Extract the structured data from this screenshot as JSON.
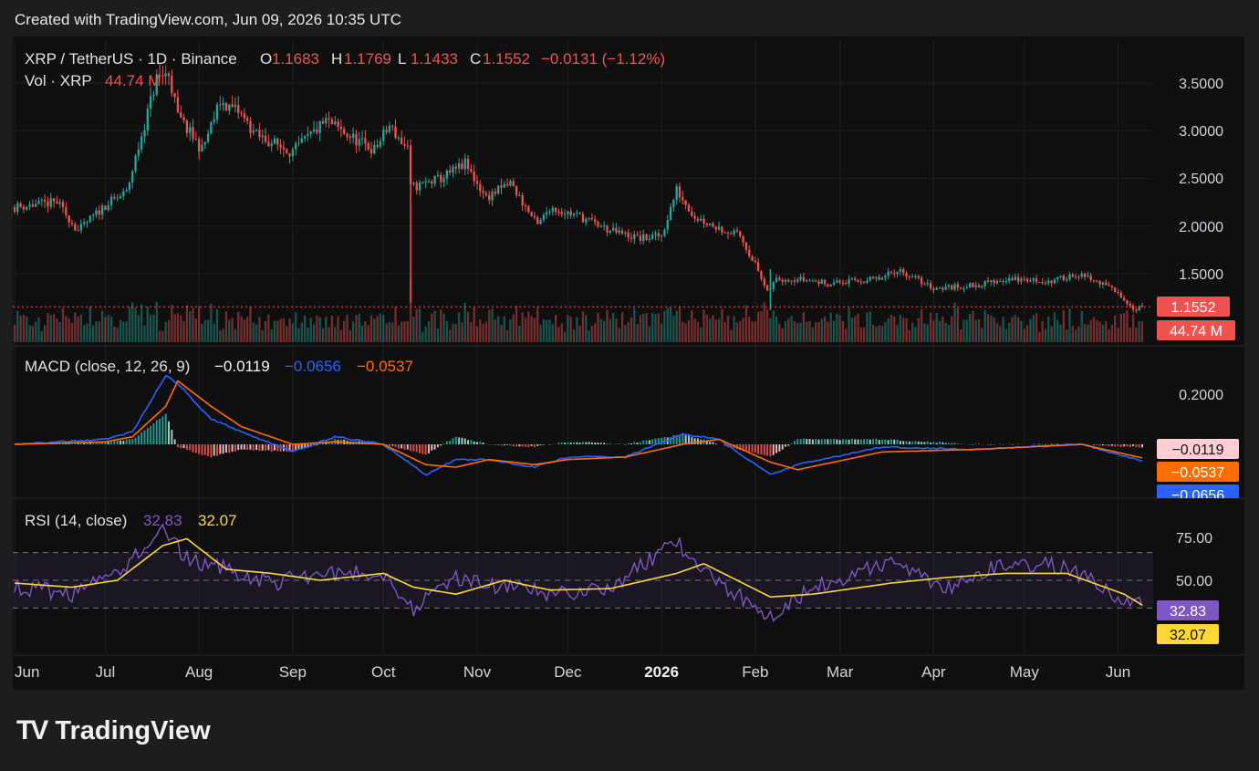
{
  "header": "Created with TradingView.com, Jun 09, 2026 10:35 UTC",
  "brand": "TradingView",
  "legend": {
    "symbol": "XRP / TetherUS · 1D · Binance",
    "o_label": "O",
    "o": "1.1683",
    "h_label": "H",
    "h": "1.1769",
    "l_label": "L",
    "l": "1.1433",
    "c_label": "C",
    "c": "1.1552",
    "change": "−0.0131 (−1.12%)",
    "vol_label": "Vol · XRP",
    "vol": "44.74 M"
  },
  "macd_legend": {
    "title": "MACD (close, 12, 26, 9)",
    "hist": "−0.0119",
    "macd": "−0.0656",
    "signal": "−0.0537"
  },
  "rsi_legend": {
    "title": "RSI (14, close)",
    "rsi": "32.83",
    "ma": "32.07"
  },
  "price_axis": [
    "3.5000",
    "3.0000",
    "2.5000",
    "2.0000",
    "1.5000"
  ],
  "macd_axis": [
    "0.2000"
  ],
  "rsi_axis": [
    "75.00",
    "50.00"
  ],
  "badges": {
    "price": "1.1552",
    "volume": "44.74 M",
    "macd_hist": "−0.0119",
    "macd_signal": "−0.0537",
    "macd_line": "−0.0656",
    "rsi": "32.83",
    "rsi_ma": "32.07"
  },
  "time_axis": [
    "Jun",
    "Jul",
    "Aug",
    "Sep",
    "Oct",
    "Nov",
    "Dec",
    "2026",
    "Feb",
    "Mar",
    "Apr",
    "May",
    "Jun"
  ],
  "colors": {
    "up": "#26a69a",
    "down": "#ef5350",
    "macd": "#2962ff",
    "signal": "#ff6d00",
    "rsi": "#7e57c2",
    "rsi_ma": "#fdd835",
    "text": "#d1d4dc",
    "bg": "#0f0f10"
  },
  "chart_data": [
    {
      "type": "candlestick",
      "title": "XRP / TetherUS · 1D · Binance",
      "ylim": [
        1.0,
        3.8
      ],
      "anchors": [
        {
          "date": "2025-06-01",
          "price": 2.2
        },
        {
          "date": "2025-06-15",
          "price": 2.25
        },
        {
          "date": "2025-06-22",
          "price": 1.95
        },
        {
          "date": "2025-07-01",
          "price": 2.22
        },
        {
          "date": "2025-07-08",
          "price": 2.35
        },
        {
          "date": "2025-07-13",
          "price": 2.95
        },
        {
          "date": "2025-07-18",
          "price": 3.55
        },
        {
          "date": "2025-07-22",
          "price": 3.6
        },
        {
          "date": "2025-07-25",
          "price": 3.15
        },
        {
          "date": "2025-08-02",
          "price": 2.8
        },
        {
          "date": "2025-08-08",
          "price": 3.3
        },
        {
          "date": "2025-08-14",
          "price": 3.2
        },
        {
          "date": "2025-08-20",
          "price": 2.95
        },
        {
          "date": "2025-09-01",
          "price": 2.78
        },
        {
          "date": "2025-09-12",
          "price": 3.1
        },
        {
          "date": "2025-09-22",
          "price": 2.9
        },
        {
          "date": "2025-09-28",
          "price": 2.8
        },
        {
          "date": "2025-10-03",
          "price": 3.05
        },
        {
          "date": "2025-10-09",
          "price": 2.8
        },
        {
          "date": "2025-10-10",
          "price": 2.4
        },
        {
          "date": "2025-10-20",
          "price": 2.5
        },
        {
          "date": "2025-10-28",
          "price": 2.65
        },
        {
          "date": "2025-11-04",
          "price": 2.3
        },
        {
          "date": "2025-11-12",
          "price": 2.45
        },
        {
          "date": "2025-11-21",
          "price": 2.0
        },
        {
          "date": "2025-11-25",
          "price": 2.2
        },
        {
          "date": "2025-12-05",
          "price": 2.1
        },
        {
          "date": "2025-12-15",
          "price": 1.95
        },
        {
          "date": "2025-12-25",
          "price": 1.87
        },
        {
          "date": "2026-01-01",
          "price": 1.9
        },
        {
          "date": "2026-01-06",
          "price": 2.38
        },
        {
          "date": "2026-01-12",
          "price": 2.1
        },
        {
          "date": "2026-01-20",
          "price": 1.98
        },
        {
          "date": "2026-01-27",
          "price": 1.9
        },
        {
          "date": "2026-02-01",
          "price": 1.6
        },
        {
          "date": "2026-02-05",
          "price": 1.3
        },
        {
          "date": "2026-02-08",
          "price": 1.45
        },
        {
          "date": "2026-02-15",
          "price": 1.45
        },
        {
          "date": "2026-02-25",
          "price": 1.4
        },
        {
          "date": "2026-03-15",
          "price": 1.45
        },
        {
          "date": "2026-03-20",
          "price": 1.55
        },
        {
          "date": "2026-04-01",
          "price": 1.35
        },
        {
          "date": "2026-04-15",
          "price": 1.38
        },
        {
          "date": "2026-04-25",
          "price": 1.45
        },
        {
          "date": "2026-05-10",
          "price": 1.42
        },
        {
          "date": "2026-05-18",
          "price": 1.5
        },
        {
          "date": "2026-05-28",
          "price": 1.38
        },
        {
          "date": "2026-06-03",
          "price": 1.25
        },
        {
          "date": "2026-06-06",
          "price": 1.13
        },
        {
          "date": "2026-06-09",
          "price": 1.1552
        }
      ],
      "last": {
        "open": 1.1683,
        "high": 1.1769,
        "low": 1.1433,
        "close": 1.1552
      },
      "volume_last": "44.74 M"
    },
    {
      "type": "line",
      "title": "MACD (close, 12, 26, 9)",
      "ylim": [
        -0.13,
        0.31
      ],
      "anchors": [
        {
          "date": "2025-06-01",
          "macd": 0.0,
          "signal": 0.0
        },
        {
          "date": "2025-07-01",
          "macd": 0.02,
          "signal": 0.01
        },
        {
          "date": "2025-07-10",
          "macd": 0.05,
          "signal": 0.03
        },
        {
          "date": "2025-07-21",
          "macd": 0.27,
          "signal": 0.15
        },
        {
          "date": "2025-07-25",
          "macd": 0.24,
          "signal": 0.25
        },
        {
          "date": "2025-08-05",
          "macd": 0.1,
          "signal": 0.15
        },
        {
          "date": "2025-08-15",
          "macd": 0.05,
          "signal": 0.07
        },
        {
          "date": "2025-09-01",
          "macd": -0.03,
          "signal": 0.0
        },
        {
          "date": "2025-09-15",
          "macd": 0.03,
          "signal": 0.01
        },
        {
          "date": "2025-10-01",
          "macd": 0.0,
          "signal": 0.0
        },
        {
          "date": "2025-10-15",
          "macd": -0.12,
          "signal": -0.08
        },
        {
          "date": "2025-10-25",
          "macd": -0.06,
          "signal": -0.09
        },
        {
          "date": "2025-11-05",
          "macd": -0.06,
          "signal": -0.06
        },
        {
          "date": "2025-11-20",
          "macd": -0.09,
          "signal": -0.08
        },
        {
          "date": "2025-12-01",
          "macd": -0.05,
          "signal": -0.06
        },
        {
          "date": "2025-12-20",
          "macd": -0.05,
          "signal": -0.05
        },
        {
          "date": "2026-01-08",
          "macd": 0.04,
          "signal": 0.0
        },
        {
          "date": "2026-01-20",
          "macd": 0.02,
          "signal": 0.02
        },
        {
          "date": "2026-02-06",
          "macd": -0.12,
          "signal": -0.07
        },
        {
          "date": "2026-02-15",
          "macd": -0.08,
          "signal": -0.1
        },
        {
          "date": "2026-03-15",
          "macd": -0.01,
          "signal": -0.03
        },
        {
          "date": "2026-04-15",
          "macd": -0.02,
          "signal": -0.02
        },
        {
          "date": "2026-05-20",
          "macd": 0.0,
          "signal": 0.0
        },
        {
          "date": "2026-06-09",
          "macd": -0.0656,
          "signal": -0.0537
        }
      ],
      "histogram_last": -0.0119
    },
    {
      "type": "line",
      "title": "RSI (14, close)",
      "ylim": [
        10,
        90
      ],
      "levels": [
        70,
        50,
        30
      ],
      "anchors": [
        {
          "date": "2025-06-01",
          "rsi": 45,
          "ma": 48
        },
        {
          "date": "2025-06-20",
          "rsi": 40,
          "ma": 45
        },
        {
          "date": "2025-07-05",
          "rsi": 55,
          "ma": 50
        },
        {
          "date": "2025-07-20",
          "rsi": 88,
          "ma": 75
        },
        {
          "date": "2025-07-28",
          "rsi": 65,
          "ma": 80
        },
        {
          "date": "2025-08-10",
          "rsi": 58,
          "ma": 58
        },
        {
          "date": "2025-08-25",
          "rsi": 48,
          "ma": 55
        },
        {
          "date": "2025-09-10",
          "rsi": 55,
          "ma": 50
        },
        {
          "date": "2025-10-01",
          "rsi": 55,
          "ma": 55
        },
        {
          "date": "2025-10-11",
          "rsi": 30,
          "ma": 45
        },
        {
          "date": "2025-10-25",
          "rsi": 52,
          "ma": 40
        },
        {
          "date": "2025-11-10",
          "rsi": 45,
          "ma": 50
        },
        {
          "date": "2025-11-25",
          "rsi": 40,
          "ma": 43
        },
        {
          "date": "2025-12-15",
          "rsi": 45,
          "ma": 44
        },
        {
          "date": "2026-01-06",
          "rsi": 78,
          "ma": 55
        },
        {
          "date": "2026-01-15",
          "rsi": 55,
          "ma": 62
        },
        {
          "date": "2026-02-06",
          "rsi": 25,
          "ma": 38
        },
        {
          "date": "2026-02-20",
          "rsi": 45,
          "ma": 40
        },
        {
          "date": "2026-03-18",
          "rsi": 63,
          "ma": 48
        },
        {
          "date": "2026-04-05",
          "rsi": 45,
          "ma": 52
        },
        {
          "date": "2026-04-25",
          "rsi": 62,
          "ma": 55
        },
        {
          "date": "2026-05-15",
          "rsi": 60,
          "ma": 55
        },
        {
          "date": "2026-06-03",
          "rsi": 35,
          "ma": 40
        },
        {
          "date": "2026-06-09",
          "rsi": 32.83,
          "ma": 32.07
        }
      ]
    }
  ]
}
